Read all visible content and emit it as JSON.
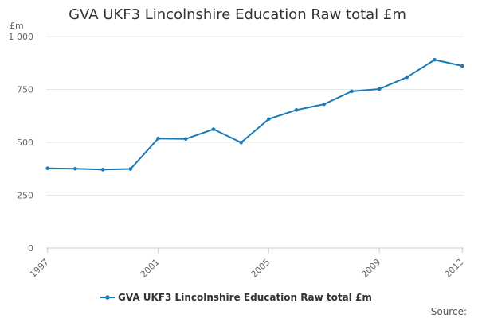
{
  "chart_data": {
    "type": "line",
    "title": "GVA UKF3 Lincolnshire Education Raw total £m",
    "ylabel": "£m",
    "xlabel": "",
    "x": [
      1997,
      1998,
      1999,
      2000,
      2001,
      2002,
      2003,
      2004,
      2005,
      2006,
      2007,
      2008,
      2009,
      2010,
      2011,
      2012
    ],
    "x_tick_labels": [
      "1997",
      "2001",
      "2005",
      "2009",
      "2012"
    ],
    "x_tick_values": [
      1997,
      2001,
      2005,
      2009,
      2012
    ],
    "xlim": [
      1996.95,
      2012.05
    ],
    "y_tick_values": [
      0,
      250,
      500,
      750,
      1000
    ],
    "y_tick_labels": [
      "0",
      "250",
      "500",
      "750",
      "1 000"
    ],
    "ylim": [
      0,
      1000
    ],
    "grid": true,
    "legend": "bottom-center",
    "series": [
      {
        "name": "GVA UKF3 Lincolnshire Education Raw total £m",
        "color": "#1a7ab8",
        "values": [
          377,
          375,
          371,
          374,
          518,
          516,
          562,
          499,
          610,
          653,
          680,
          741,
          752,
          808,
          890,
          861
        ]
      }
    ],
    "source_label": "Source:"
  }
}
